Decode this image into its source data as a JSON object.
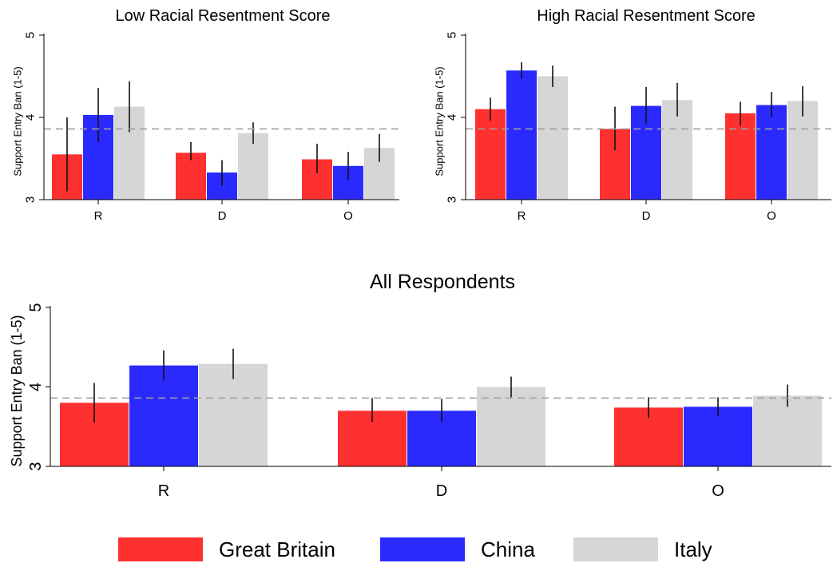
{
  "colors": {
    "great_britain": "#ff3030",
    "china": "#2a2aff",
    "italy": "#d6d6d6",
    "reference_line": "#a0a0a0",
    "error_bar": "#111111"
  },
  "legend": {
    "items": [
      {
        "label": "Great Britain",
        "color": "#ff3030"
      },
      {
        "label": "China",
        "color": "#2a2aff"
      },
      {
        "label": "Italy",
        "color": "#d6d6d6"
      }
    ]
  },
  "chart_data": [
    {
      "type": "bar",
      "title": "Low Racial Resentment Score",
      "xlabel": "",
      "ylabel": "Support Entry Ban (1-5)",
      "ylim": [
        3,
        5
      ],
      "yticks": [
        "3",
        "4",
        "5"
      ],
      "categories": [
        "R",
        "D",
        "O"
      ],
      "reference_line": 3.86,
      "grid": false,
      "series": [
        {
          "name": "Great Britain",
          "values": [
            3.55,
            3.57,
            3.49
          ],
          "ci": [
            [
              3.1,
              4.0
            ],
            [
              3.48,
              3.7
            ],
            [
              3.32,
              3.68
            ]
          ]
        },
        {
          "name": "China",
          "values": [
            4.03,
            3.33,
            3.41
          ],
          "ci": [
            [
              3.7,
              4.36
            ],
            [
              3.17,
              3.48
            ],
            [
              3.24,
              3.58
            ]
          ]
        },
        {
          "name": "Italy",
          "values": [
            4.13,
            3.81,
            3.63
          ],
          "ci": [
            [
              3.82,
              4.44
            ],
            [
              3.68,
              3.94
            ],
            [
              3.46,
              3.8
            ]
          ]
        }
      ]
    },
    {
      "type": "bar",
      "title": "High Racial Resentment Score",
      "xlabel": "",
      "ylabel": "Support Entry Ban (1-5)",
      "ylim": [
        3,
        5
      ],
      "yticks": [
        "3",
        "4",
        "5"
      ],
      "categories": [
        "R",
        "D",
        "O"
      ],
      "reference_line": 3.86,
      "grid": false,
      "series": [
        {
          "name": "Great Britain",
          "values": [
            4.1,
            3.86,
            4.05
          ],
          "ci": [
            [
              3.96,
              4.24
            ],
            [
              3.6,
              4.13
            ],
            [
              3.9,
              4.19
            ]
          ]
        },
        {
          "name": "China",
          "values": [
            4.57,
            4.14,
            4.15
          ],
          "ci": [
            [
              4.47,
              4.67
            ],
            [
              3.92,
              4.37
            ],
            [
              4.0,
              4.31
            ]
          ]
        },
        {
          "name": "Italy",
          "values": [
            4.5,
            4.21,
            4.2
          ],
          "ci": [
            [
              4.37,
              4.63
            ],
            [
              4.01,
              4.42
            ],
            [
              4.01,
              4.38
            ]
          ]
        }
      ]
    },
    {
      "type": "bar",
      "title": "All Respondents",
      "xlabel": "",
      "ylabel": "Support Entry Ban (1-5)",
      "ylim": [
        3,
        5
      ],
      "yticks": [
        "3",
        "4",
        "5"
      ],
      "categories": [
        "R",
        "D",
        "O"
      ],
      "reference_line": 3.86,
      "grid": false,
      "series": [
        {
          "name": "Great Britain",
          "values": [
            3.8,
            3.7,
            3.74
          ],
          "ci": [
            [
              3.55,
              4.05
            ],
            [
              3.56,
              3.86
            ],
            [
              3.61,
              3.87
            ]
          ]
        },
        {
          "name": "China",
          "values": [
            4.27,
            3.7,
            3.75
          ],
          "ci": [
            [
              4.08,
              4.46
            ],
            [
              3.56,
              3.85
            ],
            [
              3.63,
              3.87
            ]
          ]
        },
        {
          "name": "Italy",
          "values": [
            4.29,
            4.0,
            3.89
          ],
          "ci": [
            [
              4.1,
              4.48
            ],
            [
              3.87,
              4.13
            ],
            [
              3.75,
              4.03
            ]
          ]
        }
      ]
    }
  ]
}
